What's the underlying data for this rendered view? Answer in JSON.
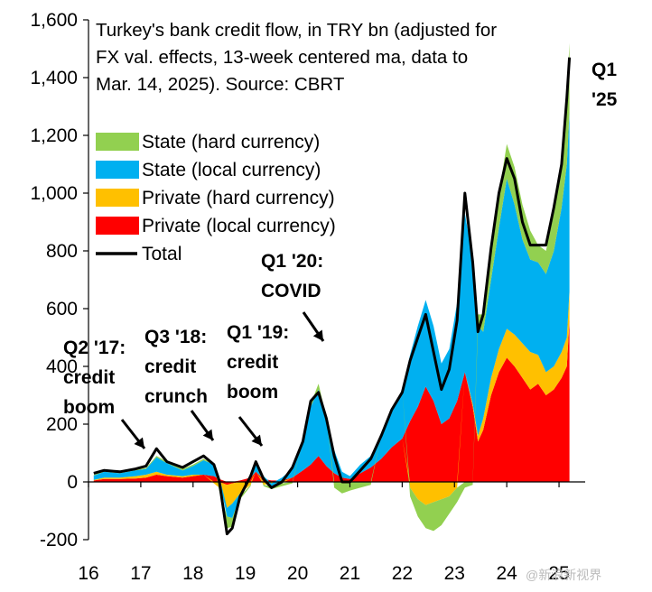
{
  "chart_data": {
    "type": "area",
    "title_lines": [
      "Turkey's bank credit flow, in TRY bn (adjusted for",
      "FX val. effects, 13-week centered ma, data to",
      "Mar. 14, 2025). Source: CBRT"
    ],
    "ylim": [
      -200,
      1600
    ],
    "yticks": [
      "-200",
      "0",
      "200",
      "400",
      "600",
      "800",
      "1,000",
      "1,200",
      "1,400",
      "1,600"
    ],
    "ytick_values": [
      -200,
      0,
      200,
      400,
      600,
      800,
      1000,
      1200,
      1400,
      1600
    ],
    "xlim": [
      16,
      25.5
    ],
    "xticks": [
      "16",
      "17",
      "18",
      "19",
      "20",
      "21",
      "22",
      "23",
      "24",
      "25"
    ],
    "xtick_values": [
      16,
      17,
      18,
      19,
      20,
      21,
      22,
      23,
      24,
      25
    ],
    "x": [
      16.1,
      16.3,
      16.6,
      16.9,
      17.1,
      17.3,
      17.5,
      17.8,
      18.0,
      18.2,
      18.4,
      18.5,
      18.65,
      18.75,
      18.9,
      19.1,
      19.2,
      19.35,
      19.5,
      19.7,
      19.9,
      20.1,
      20.25,
      20.4,
      20.55,
      20.7,
      20.85,
      21.0,
      21.2,
      21.4,
      21.6,
      21.8,
      22.0,
      22.15,
      22.3,
      22.45,
      22.6,
      22.75,
      22.9,
      23.05,
      23.2,
      23.35,
      23.45,
      23.55,
      23.7,
      23.85,
      24.0,
      24.15,
      24.3,
      24.45,
      24.6,
      24.75,
      24.9,
      25.05,
      25.15,
      25.2
    ],
    "series": [
      {
        "name": "Private (local currency)",
        "color": "#ff0000",
        "kind": "stack",
        "values": [
          5,
          10,
          10,
          12,
          15,
          25,
          20,
          15,
          20,
          25,
          20,
          10,
          -10,
          -5,
          5,
          15,
          35,
          10,
          5,
          5,
          15,
          40,
          60,
          90,
          55,
          30,
          15,
          10,
          30,
          50,
          80,
          120,
          150,
          210,
          260,
          330,
          280,
          200,
          220,
          280,
          380,
          260,
          140,
          180,
          300,
          380,
          430,
          400,
          360,
          320,
          340,
          300,
          320,
          360,
          400,
          560
        ]
      },
      {
        "name": "Private (hard currency)",
        "color": "#ffc000",
        "kind": "stack",
        "values": [
          2,
          5,
          5,
          8,
          10,
          10,
          5,
          5,
          5,
          0,
          -5,
          -20,
          -80,
          -70,
          -40,
          -10,
          0,
          -10,
          -5,
          -5,
          0,
          0,
          0,
          0,
          0,
          0,
          0,
          0,
          0,
          0,
          0,
          0,
          0,
          -20,
          -60,
          -80,
          -70,
          -60,
          -50,
          -20,
          0,
          10,
          20,
          40,
          60,
          80,
          100,
          110,
          120,
          130,
          100,
          80,
          80,
          90,
          100,
          100
        ]
      },
      {
        "name": "State (local currency)",
        "color": "#00b0f0",
        "kind": "stack",
        "values": [
          15,
          20,
          15,
          20,
          20,
          50,
          40,
          20,
          30,
          50,
          40,
          10,
          -30,
          -50,
          -10,
          10,
          30,
          10,
          -10,
          10,
          30,
          100,
          200,
          230,
          170,
          80,
          20,
          10,
          30,
          40,
          80,
          130,
          170,
          230,
          280,
          300,
          260,
          210,
          240,
          340,
          550,
          500,
          380,
          300,
          340,
          420,
          520,
          450,
          360,
          320,
          320,
          340,
          400,
          500,
          600,
          620
        ]
      },
      {
        "name": "State (hard currency)",
        "color": "#92d050",
        "kind": "stack",
        "values": [
          2,
          3,
          2,
          3,
          3,
          5,
          5,
          5,
          5,
          5,
          0,
          -10,
          -40,
          -30,
          -10,
          -5,
          0,
          -5,
          -10,
          -10,
          -5,
          0,
          10,
          20,
          0,
          -20,
          -40,
          -30,
          -20,
          -10,
          0,
          0,
          0,
          -30,
          -60,
          -80,
          -100,
          -90,
          -60,
          -50,
          -20,
          -10,
          40,
          60,
          100,
          120,
          120,
          130,
          120,
          100,
          60,
          80,
          130,
          160,
          240,
          240
        ]
      },
      {
        "name": "Total",
        "color": "#000000",
        "kind": "line",
        "values": [
          30,
          40,
          35,
          45,
          55,
          115,
          70,
          50,
          70,
          90,
          60,
          5,
          -180,
          -160,
          -50,
          20,
          70,
          10,
          -20,
          0,
          50,
          140,
          280,
          310,
          220,
          90,
          0,
          0,
          40,
          80,
          160,
          250,
          310,
          420,
          500,
          580,
          450,
          320,
          390,
          560,
          1000,
          760,
          520,
          580,
          810,
          1000,
          1120,
          1050,
          900,
          820,
          820,
          820,
          950,
          1100,
          1330,
          1470
        ]
      }
    ],
    "annotations": [
      {
        "lines": [
          "Q2 '17:",
          "credit",
          "boom"
        ]
      },
      {
        "lines": [
          "Q3 '18:",
          "credit",
          "crunch"
        ]
      },
      {
        "lines": [
          "Q1 '19:",
          "credit",
          "boom"
        ]
      },
      {
        "lines": [
          "Q1 '20:",
          "COVID"
        ]
      },
      {
        "lines": [
          "Q1",
          "'25"
        ]
      }
    ],
    "legend_position": "top-left",
    "legend_order": [
      "State (hard currency)",
      "State (local currency)",
      "Private (hard currency)",
      "Private (local currency)",
      "Total"
    ],
    "grid": false
  },
  "watermark": "@新浪新视界"
}
